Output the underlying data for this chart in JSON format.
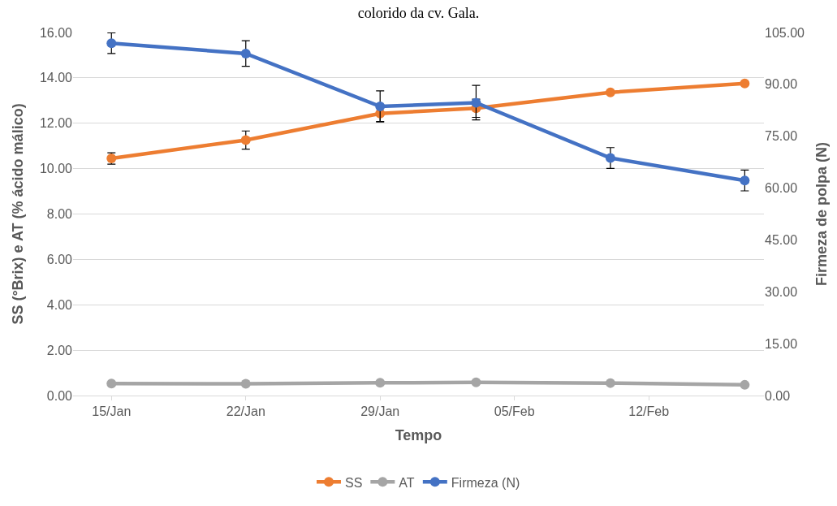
{
  "chart_data": {
    "type": "line",
    "title": "colorido da cv. Gala.",
    "xlabel": "Tempo",
    "ylabel": "SS (°Brix) e AT (% ácido málico)",
    "y2label": "Firmeza de polpa (N)",
    "x": [
      "--01-15",
      "--01-22",
      "--01-29",
      "--02-03",
      "--02-10",
      "--02-17"
    ],
    "series": [
      {
        "name": "SS",
        "color": "#ed7d31",
        "values": [
          10.45,
          11.26,
          12.43,
          12.66,
          13.36,
          13.75
        ],
        "errors": [
          0.25,
          0.4,
          0.35,
          0.4,
          null,
          null
        ]
      },
      {
        "name": "AT",
        "color": "#a5a5a5",
        "values": [
          0.53,
          0.52,
          0.56,
          0.58,
          0.55,
          0.47
        ]
      },
      {
        "name": "Firmeza (N)",
        "color": "#4472c4",
        "axis": "y2",
        "values": [
          101.9,
          98.9,
          83.6,
          84.7,
          68.7,
          62.2
        ],
        "errors": [
          3,
          3.7,
          4.5,
          5,
          3,
          3
        ]
      }
    ],
    "xlim": [
      "--01-13",
      "--02-18"
    ],
    "xticks": [
      {
        "value": "--01-15",
        "label": "15/Jan"
      },
      {
        "value": "--01-22",
        "label": "22/Jan"
      },
      {
        "value": "--01-29",
        "label": "29/Jan"
      },
      {
        "value": "--02-05",
        "label": "05/Feb"
      },
      {
        "value": "--02-12",
        "label": "12/Feb"
      }
    ],
    "ylim": [
      0,
      16
    ],
    "yticks": [
      {
        "value": 0,
        "label": "0.00"
      },
      {
        "value": 2,
        "label": "2.00"
      },
      {
        "value": 4,
        "label": "4.00"
      },
      {
        "value": 6,
        "label": "6.00"
      },
      {
        "value": 8,
        "label": "8.00"
      },
      {
        "value": 10,
        "label": "10.00"
      },
      {
        "value": 12,
        "label": "12.00"
      },
      {
        "value": 14,
        "label": "14.00"
      },
      {
        "value": 16,
        "label": "16.00"
      }
    ],
    "y2lim": [
      0,
      105
    ],
    "y2ticks": [
      {
        "value": 0,
        "label": "0.00"
      },
      {
        "value": 15,
        "label": "15.00"
      },
      {
        "value": 30,
        "label": "30.00"
      },
      {
        "value": 45,
        "label": "45.00"
      },
      {
        "value": 60,
        "label": "60.00"
      },
      {
        "value": 75,
        "label": "75.00"
      },
      {
        "value": 90,
        "label": "90.00"
      },
      {
        "value": 105,
        "label": "105.00"
      }
    ],
    "grid": "y",
    "legend": "bottom",
    "marker": "circle",
    "line_style": "solid"
  }
}
